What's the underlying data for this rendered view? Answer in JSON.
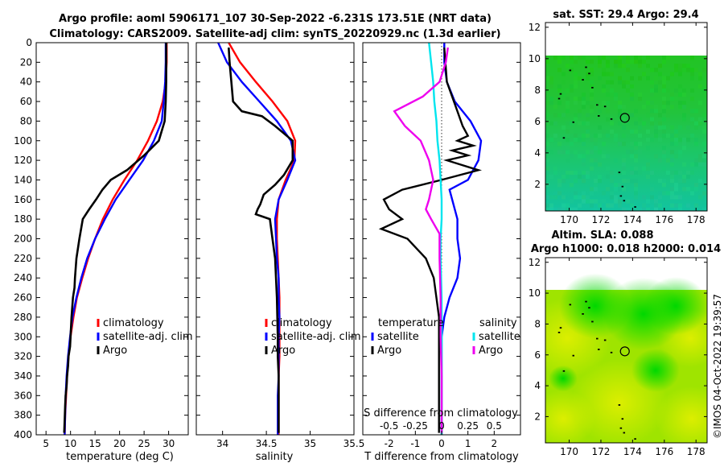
{
  "title": {
    "line1": "Argo profile: aoml 5906171_107 30-Sep-2022 -6.231S 173.51E (NRT data)",
    "line2": "Climatology: CARS2009. Satellite-adj clim: synTS_20220929.nc (1.3d earlier)"
  },
  "footer": "©IMOS 04-Oct-2022 19:39:57",
  "colors": {
    "climatology": "#ff0000",
    "satellite": "#0000ff",
    "argo": "#000000",
    "sat_s": "#00e5ee",
    "argo_s": "#ee00ee"
  },
  "chart_data": [
    {
      "type": "line",
      "title": "",
      "xlabel": "temperature (deg C)",
      "ylabel": "",
      "xlim": [
        3,
        34
      ],
      "ylim": [
        400,
        0
      ],
      "xticks": [
        "5",
        "10",
        "15",
        "20",
        "25",
        "30"
      ],
      "yticks": [
        "0",
        "20",
        "40",
        "60",
        "80",
        "100",
        "120",
        "140",
        "160",
        "180",
        "200",
        "220",
        "240",
        "260",
        "280",
        "300",
        "320",
        "340",
        "360",
        "380",
        "400"
      ],
      "legend": [
        "climatology",
        "satellite-adj. clim",
        "Argo"
      ],
      "series": [
        {
          "name": "climatology",
          "color": "#ff0000",
          "x": [
            29.6,
            29.6,
            29.4,
            28.8,
            27.6,
            25.8,
            23.6,
            21.0,
            18.6,
            16.6,
            15.0,
            13.6,
            12.4,
            11.3,
            10.6,
            10.0,
            9.6,
            9.3,
            9.1,
            8.9,
            8.8
          ],
          "y": [
            0,
            20,
            40,
            60,
            80,
            100,
            120,
            140,
            160,
            180,
            200,
            220,
            240,
            260,
            280,
            300,
            320,
            340,
            360,
            380,
            400
          ]
        },
        {
          "name": "satellite-adj. clim",
          "color": "#0000ff",
          "x": [
            29.4,
            29.4,
            29.3,
            29.0,
            28.6,
            27.0,
            24.8,
            22.0,
            19.2,
            17.0,
            15.0,
            13.4,
            12.2,
            11.2,
            10.4,
            9.9,
            9.5,
            9.2,
            9.0,
            8.9,
            8.8
          ],
          "y": [
            0,
            20,
            40,
            60,
            80,
            100,
            120,
            140,
            160,
            180,
            200,
            220,
            240,
            260,
            280,
            300,
            320,
            340,
            360,
            380,
            400
          ]
        },
        {
          "name": "Argo",
          "color": "#000000",
          "x": [
            29.5,
            29.5,
            29.5,
            29.4,
            29.2,
            28.0,
            25.0,
            21.5,
            18.2,
            16.5,
            15.2,
            13.8,
            12.5,
            11.8,
            11.2,
            10.9,
            10.8,
            10.5,
            10.2,
            10.0,
            9.9,
            9.6,
            9.5,
            9.3,
            9.2,
            9.0,
            8.9,
            8.8,
            8.7
          ],
          "y": [
            0,
            20,
            40,
            60,
            80,
            100,
            115,
            130,
            140,
            150,
            160,
            170,
            180,
            200,
            220,
            240,
            250,
            260,
            280,
            300,
            310,
            320,
            330,
            340,
            350,
            360,
            370,
            385,
            398
          ]
        }
      ]
    },
    {
      "type": "line",
      "xlabel": "salinity",
      "xlim": [
        33.7,
        35.5
      ],
      "ylim": [
        400,
        0
      ],
      "xticks": [
        "34",
        "34.5",
        "35",
        "35.5"
      ],
      "legend": [
        "climatology",
        "satellite-adj. clim",
        "Argo"
      ],
      "series": [
        {
          "name": "climatology",
          "color": "#ff0000",
          "x": [
            34.07,
            34.2,
            34.38,
            34.57,
            34.74,
            34.83,
            34.82,
            34.72,
            34.64,
            34.62,
            34.62,
            34.63,
            34.64,
            34.65,
            34.65,
            34.65,
            34.65,
            34.64,
            34.64,
            34.64,
            34.64
          ],
          "y": [
            0,
            20,
            40,
            60,
            80,
            100,
            120,
            140,
            160,
            180,
            200,
            220,
            240,
            260,
            280,
            300,
            320,
            340,
            360,
            380,
            400
          ]
        },
        {
          "name": "satellite-adj. clim",
          "color": "#0000ff",
          "x": [
            33.95,
            34.05,
            34.22,
            34.42,
            34.62,
            34.78,
            34.83,
            34.74,
            34.64,
            34.6,
            34.61,
            34.62,
            34.64,
            34.64,
            34.65,
            34.64,
            34.64,
            34.64,
            34.63,
            34.63,
            34.63
          ],
          "y": [
            0,
            20,
            40,
            60,
            80,
            100,
            120,
            140,
            160,
            180,
            200,
            220,
            240,
            260,
            280,
            300,
            320,
            340,
            360,
            380,
            400
          ]
        },
        {
          "name": "Argo",
          "color": "#000000",
          "x": [
            34.07,
            34.08,
            34.1,
            34.12,
            34.22,
            34.45,
            34.6,
            34.8,
            34.8,
            34.7,
            34.6,
            34.47,
            34.43,
            34.4,
            34.38,
            34.54,
            34.57,
            34.6,
            34.62,
            34.63,
            34.63,
            34.64,
            34.64,
            34.64
          ],
          "y": [
            5,
            20,
            40,
            60,
            70,
            75,
            85,
            100,
            120,
            135,
            145,
            155,
            165,
            170,
            175,
            180,
            200,
            220,
            260,
            300,
            320,
            340,
            370,
            398
          ]
        }
      ]
    },
    {
      "type": "line",
      "xlabel": "T difference from climatology",
      "title": "S difference from climatology",
      "xlim": [
        -3,
        3
      ],
      "ylim": [
        400,
        0
      ],
      "xticks": [
        "-2",
        "-1",
        "0",
        "1",
        "2"
      ],
      "sticks": [
        "-0.5",
        "-0.25",
        "0",
        "0.25",
        "0.5"
      ],
      "legend_t": {
        "heading": "temperature",
        "items": [
          "satellite",
          "Argo"
        ]
      },
      "legend_s": {
        "heading": "salinity",
        "items": [
          "satellite",
          "Argo"
        ]
      },
      "series": [
        {
          "name": "temperature satellite",
          "color": "#0000ff",
          "x": [
            0.1,
            0.1,
            0.2,
            0.5,
            1.1,
            1.5,
            1.4,
            1.0,
            0.3,
            0.6,
            0.6,
            0.7,
            0.6,
            0.3,
            0.1,
            0.0,
            0.0,
            0.0,
            0.0
          ],
          "y": [
            0,
            20,
            40,
            60,
            80,
            100,
            120,
            140,
            150,
            180,
            200,
            220,
            240,
            260,
            280,
            300,
            320,
            360,
            400
          ]
        },
        {
          "name": "temperature Argo",
          "color": "#000000",
          "x": [
            0.1,
            0.2,
            0.6,
            0.8,
            1.0,
            0.6,
            1.2,
            0.4,
            1.0,
            0.2,
            1.4,
            0.0,
            -1.5,
            -2.2,
            -2.0,
            -1.5,
            -2.3,
            -1.3,
            -0.6,
            -0.3,
            -0.2,
            -0.1,
            -0.1,
            -0.1,
            -0.1,
            -0.1,
            -0.1,
            -0.1,
            -0.1,
            -0.1,
            -0.1,
            -0.1
          ],
          "y": [
            5,
            40,
            70,
            85,
            95,
            100,
            105,
            110,
            115,
            120,
            130,
            140,
            150,
            160,
            170,
            180,
            190,
            200,
            220,
            240,
            260,
            280,
            300,
            320,
            330,
            340,
            350,
            360,
            370,
            380,
            390,
            398
          ]
        },
        {
          "name": "salinity satellite",
          "color": "#00e5ee",
          "x": [
            -0.12,
            -0.1,
            -0.08,
            -0.07,
            -0.05,
            -0.04,
            -0.02,
            -0.01,
            0.0,
            0.0,
            -0.01,
            -0.01,
            0.0,
            0.0,
            0.0,
            0.0,
            0.0
          ],
          "y": [
            0,
            20,
            40,
            60,
            80,
            100,
            120,
            140,
            160,
            180,
            200,
            220,
            260,
            300,
            340,
            380,
            400
          ]
        },
        {
          "name": "salinity Argo",
          "color": "#ee00ee",
          "x": [
            0.06,
            0.04,
            -0.02,
            -0.18,
            -0.45,
            -0.35,
            -0.2,
            -0.12,
            -0.08,
            -0.12,
            -0.15,
            -0.1,
            -0.02,
            -0.02,
            -0.01,
            -0.01,
            0.0,
            0.0
          ],
          "y": [
            5,
            20,
            40,
            55,
            70,
            85,
            100,
            120,
            140,
            160,
            170,
            180,
            195,
            220,
            260,
            300,
            340,
            398
          ]
        }
      ]
    },
    {
      "type": "heatmap",
      "title": "sat. SST: 29.4 Argo: 29.4",
      "xlim": [
        168.5,
        178.7
      ],
      "ylim": [
        0.3,
        12.3
      ],
      "xticks": [
        "170",
        "172",
        "174",
        "176",
        "178"
      ],
      "yticks": [
        "2",
        "4",
        "6",
        "8",
        "10",
        "12"
      ],
      "marker": {
        "lon": 173.51,
        "lat": 6.23
      }
    },
    {
      "type": "heatmap",
      "title": "Altim. SLA: 0.088",
      "subtitle": "Argo h1000: 0.018 h2000: 0.014",
      "xlim": [
        168.5,
        178.7
      ],
      "ylim": [
        0.3,
        12.3
      ],
      "xticks": [
        "170",
        "172",
        "174",
        "176",
        "178"
      ],
      "yticks": [
        "2",
        "4",
        "6",
        "8",
        "10",
        "12"
      ],
      "marker": {
        "lon": 173.51,
        "lat": 6.23
      }
    }
  ]
}
